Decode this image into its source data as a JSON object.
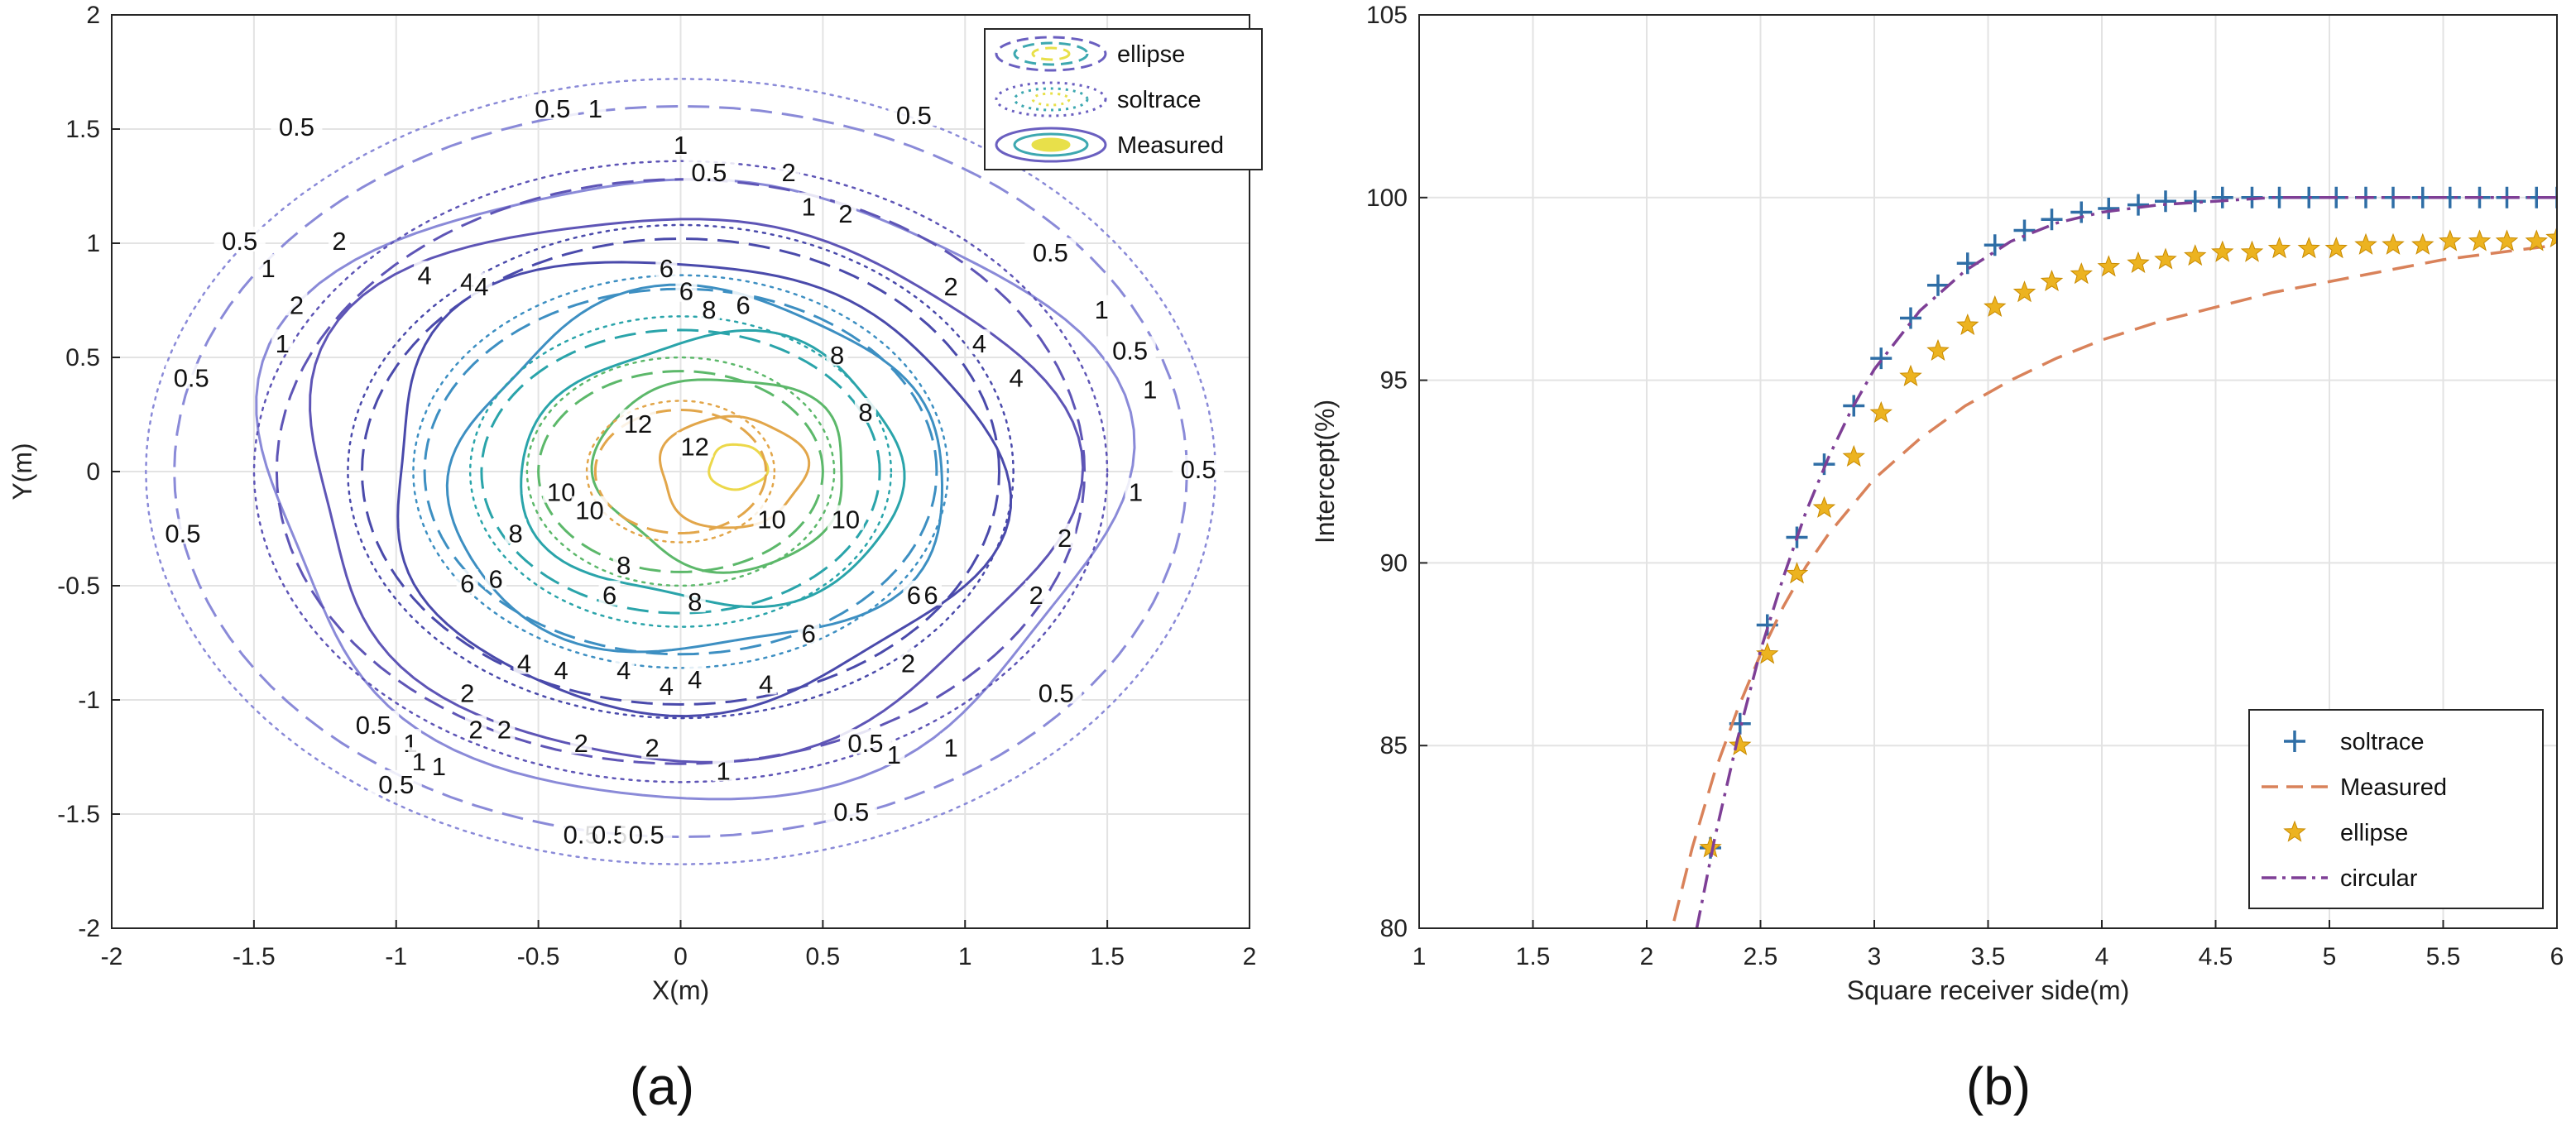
{
  "chart_data": [
    {
      "type": "contour",
      "panel_label": "(a)",
      "xlabel": "X(m)",
      "ylabel": "Y(m)",
      "xlim": [
        -2,
        2
      ],
      "ylim": [
        -2,
        2
      ],
      "xticks": [
        "-2",
        "-1.5",
        "-1",
        "-0.5",
        "0",
        "0.5",
        "1",
        "1.5",
        "2"
      ],
      "yticks": [
        "2",
        "1.5",
        "1",
        "0.5",
        "0",
        "-0.5",
        "-1",
        "-1.5",
        "-2"
      ],
      "grid": true,
      "legend_position": "top-right",
      "legend": [
        "ellipse",
        "soltrace",
        "Measured"
      ],
      "levels": [
        0.5,
        1,
        2,
        4,
        6,
        8,
        10,
        12
      ],
      "level_colors": [
        "#8a8ad8",
        "#5e55b6",
        "#4a4aab",
        "#3d8fc2",
        "#2aa4aa",
        "#5cb86a",
        "#e2a64a",
        "#ecd84a"
      ],
      "series": [
        {
          "name": "Measured",
          "style": "solid",
          "contours": [
            {
              "level": 0.5,
              "cx": 0.02,
              "cy": -0.05,
              "rx": 1.48,
              "ry": 1.38
            },
            {
              "level": 1,
              "cx": 0.0,
              "cy": -0.05,
              "rx": 1.32,
              "ry": 1.2
            },
            {
              "level": 2,
              "cx": 0.02,
              "cy": -0.05,
              "rx": 1.08,
              "ry": 0.98
            },
            {
              "level": 4,
              "cx": 0.06,
              "cy": -0.02,
              "rx": 0.88,
              "ry": 0.78
            },
            {
              "level": 6,
              "cx": 0.12,
              "cy": 0.0,
              "rx": 0.66,
              "ry": 0.6
            },
            {
              "level": 8,
              "cx": 0.15,
              "cy": 0.0,
              "rx": 0.44,
              "ry": 0.42
            },
            {
              "level": 10,
              "cx": 0.18,
              "cy": 0.0,
              "rx": 0.26,
              "ry": 0.24
            },
            {
              "level": 12,
              "cx": 0.2,
              "cy": 0.02,
              "rx": 0.1,
              "ry": 0.1
            }
          ]
        },
        {
          "name": "ellipse",
          "style": "dashed",
          "contours": [
            {
              "level": 0.5,
              "cx": 0.0,
              "cy": 0.0,
              "rx": 1.78,
              "ry": 1.6
            },
            {
              "level": 1,
              "cx": 0.0,
              "cy": 0.0,
              "rx": 1.42,
              "ry": 1.28
            },
            {
              "level": 2,
              "cx": 0.0,
              "cy": 0.0,
              "rx": 1.12,
              "ry": 1.02
            },
            {
              "level": 4,
              "cx": 0.0,
              "cy": 0.0,
              "rx": 0.9,
              "ry": 0.8
            },
            {
              "level": 6,
              "cx": 0.0,
              "cy": 0.0,
              "rx": 0.7,
              "ry": 0.62
            },
            {
              "level": 8,
              "cx": 0.0,
              "cy": 0.0,
              "rx": 0.5,
              "ry": 0.44
            },
            {
              "level": 10,
              "cx": 0.0,
              "cy": 0.0,
              "rx": 0.3,
              "ry": 0.27
            }
          ]
        },
        {
          "name": "soltrace",
          "style": "dotted",
          "contours": [
            {
              "level": 0.5,
              "cx": 0.0,
              "cy": 0.0,
              "rx": 1.88,
              "ry": 1.72
            },
            {
              "level": 1,
              "cx": 0.0,
              "cy": 0.0,
              "rx": 1.5,
              "ry": 1.36
            },
            {
              "level": 2,
              "cx": 0.0,
              "cy": 0.0,
              "rx": 1.17,
              "ry": 1.08
            },
            {
              "level": 4,
              "cx": 0.0,
              "cy": 0.0,
              "rx": 0.94,
              "ry": 0.86
            },
            {
              "level": 6,
              "cx": 0.0,
              "cy": 0.0,
              "rx": 0.74,
              "ry": 0.68
            },
            {
              "level": 8,
              "cx": 0.0,
              "cy": 0.0,
              "rx": 0.54,
              "ry": 0.5
            },
            {
              "level": 10,
              "cx": 0.0,
              "cy": 0.0,
              "rx": 0.33,
              "ry": 0.31
            }
          ]
        }
      ],
      "contour_labels": [
        {
          "text": "0.5",
          "x": -1.35,
          "y": 1.5
        },
        {
          "text": "0.5",
          "x": -0.45,
          "y": 1.58
        },
        {
          "text": "1",
          "x": -0.3,
          "y": 1.58
        },
        {
          "text": "0.5",
          "x": 0.82,
          "y": 1.55
        },
        {
          "text": "1",
          "x": 0.0,
          "y": 1.42
        },
        {
          "text": "0.5",
          "x": 0.1,
          "y": 1.3
        },
        {
          "text": "2",
          "x": 0.38,
          "y": 1.3
        },
        {
          "text": "1",
          "x": 0.45,
          "y": 1.15
        },
        {
          "text": "2",
          "x": 0.58,
          "y": 1.12
        },
        {
          "text": "2",
          "x": -1.2,
          "y": 1.0
        },
        {
          "text": "0.5",
          "x": -1.55,
          "y": 1.0
        },
        {
          "text": "1",
          "x": -1.45,
          "y": 0.88
        },
        {
          "text": "2",
          "x": -1.35,
          "y": 0.72
        },
        {
          "text": "4",
          "x": -0.9,
          "y": 0.85
        },
        {
          "text": "4",
          "x": -0.75,
          "y": 0.82
        },
        {
          "text": "4",
          "x": -0.7,
          "y": 0.8
        },
        {
          "text": "6",
          "x": -0.05,
          "y": 0.88
        },
        {
          "text": "6",
          "x": 0.02,
          "y": 0.78
        },
        {
          "text": "8",
          "x": 0.1,
          "y": 0.7
        },
        {
          "text": "6",
          "x": 0.22,
          "y": 0.72
        },
        {
          "text": "1",
          "x": -1.4,
          "y": 0.55
        },
        {
          "text": "0.5",
          "x": -1.72,
          "y": 0.4
        },
        {
          "text": "2",
          "x": 0.95,
          "y": 0.8
        },
        {
          "text": "4",
          "x": 1.05,
          "y": 0.55
        },
        {
          "text": "4",
          "x": 1.18,
          "y": 0.4
        },
        {
          "text": "0.5",
          "x": 1.3,
          "y": 0.95
        },
        {
          "text": "1",
          "x": 1.48,
          "y": 0.7
        },
        {
          "text": "0.5",
          "x": 1.58,
          "y": 0.52
        },
        {
          "text": "1",
          "x": 1.65,
          "y": 0.35
        },
        {
          "text": "8",
          "x": 0.55,
          "y": 0.5
        },
        {
          "text": "8",
          "x": 0.65,
          "y": 0.25
        },
        {
          "text": "12",
          "x": -0.15,
          "y": 0.2
        },
        {
          "text": "12",
          "x": 0.05,
          "y": 0.1
        },
        {
          "text": "0.5",
          "x": 1.82,
          "y": 0.0
        },
        {
          "text": "1",
          "x": 1.6,
          "y": -0.1
        },
        {
          "text": "10",
          "x": -0.42,
          "y": -0.1
        },
        {
          "text": "10",
          "x": -0.32,
          "y": -0.18
        },
        {
          "text": "10",
          "x": 0.32,
          "y": -0.22
        },
        {
          "text": "10",
          "x": 0.58,
          "y": -0.22
        },
        {
          "text": "0.5",
          "x": -1.75,
          "y": -0.28
        },
        {
          "text": "8",
          "x": -0.58,
          "y": -0.28
        },
        {
          "text": "2",
          "x": 1.35,
          "y": -0.3
        },
        {
          "text": "8",
          "x": -0.2,
          "y": -0.42
        },
        {
          "text": "6",
          "x": -0.65,
          "y": -0.48
        },
        {
          "text": "6",
          "x": -0.75,
          "y": -0.5
        },
        {
          "text": "6",
          "x": -0.25,
          "y": -0.55
        },
        {
          "text": "8",
          "x": 0.05,
          "y": -0.58
        },
        {
          "text": "6",
          "x": 0.82,
          "y": -0.55
        },
        {
          "text": "6",
          "x": 0.88,
          "y": -0.55
        },
        {
          "text": "6",
          "x": 0.45,
          "y": -0.72
        },
        {
          "text": "2",
          "x": 1.25,
          "y": -0.55
        },
        {
          "text": "4",
          "x": -0.55,
          "y": -0.85
        },
        {
          "text": "4",
          "x": -0.42,
          "y": -0.88
        },
        {
          "text": "4",
          "x": -0.2,
          "y": -0.88
        },
        {
          "text": "4",
          "x": -0.05,
          "y": -0.95
        },
        {
          "text": "4",
          "x": 0.05,
          "y": -0.92
        },
        {
          "text": "4",
          "x": 0.3,
          "y": -0.94
        },
        {
          "text": "2",
          "x": 0.8,
          "y": -0.85
        },
        {
          "text": "0.5",
          "x": 1.32,
          "y": -0.98
        },
        {
          "text": "2",
          "x": -0.75,
          "y": -0.98
        },
        {
          "text": "0.5",
          "x": -1.08,
          "y": -1.12
        },
        {
          "text": "1",
          "x": -0.95,
          "y": -1.2
        },
        {
          "text": "2",
          "x": -0.72,
          "y": -1.14
        },
        {
          "text": "2",
          "x": -0.62,
          "y": -1.14
        },
        {
          "text": "2",
          "x": -0.35,
          "y": -1.2
        },
        {
          "text": "2",
          "x": -0.1,
          "y": -1.22
        },
        {
          "text": "0.5",
          "x": 0.65,
          "y": -1.2
        },
        {
          "text": "1",
          "x": 0.75,
          "y": -1.25
        },
        {
          "text": "1",
          "x": 0.95,
          "y": -1.22
        },
        {
          "text": "1",
          "x": -0.92,
          "y": -1.28
        },
        {
          "text": "1",
          "x": -0.85,
          "y": -1.3
        },
        {
          "text": "1",
          "x": 0.15,
          "y": -1.32
        },
        {
          "text": "0.5",
          "x": -1.0,
          "y": -1.38
        },
        {
          "text": "0.5",
          "x": 0.6,
          "y": -1.5
        },
        {
          "text": "0.5",
          "x": -0.35,
          "y": -1.6
        },
        {
          "text": "0.5",
          "x": -0.25,
          "y": -1.6
        },
        {
          "text": "0.5",
          "x": -0.12,
          "y": -1.6
        }
      ]
    },
    {
      "type": "scatter-line",
      "panel_label": "(b)",
      "xlabel": "Square receiver side(m)",
      "ylabel": "Intercept(%)",
      "xlim": [
        1,
        6
      ],
      "ylim": [
        80,
        105
      ],
      "xticks": [
        "1",
        "1.5",
        "2",
        "2.5",
        "3",
        "3.5",
        "4",
        "4.5",
        "5",
        "5.5",
        "6"
      ],
      "yticks": [
        "105",
        "100",
        "95",
        "90",
        "85",
        "80"
      ],
      "grid": true,
      "legend_position": "bottom-right",
      "series": [
        {
          "name": "soltrace",
          "style": "plus-markers",
          "color": "#2f6ea6",
          "x": [
            2.28,
            2.41,
            2.53,
            2.66,
            2.78,
            2.91,
            3.03,
            3.16,
            3.28,
            3.41,
            3.53,
            3.66,
            3.78,
            3.91,
            4.03,
            4.16,
            4.28,
            4.41,
            4.53,
            4.66,
            4.78,
            4.91,
            5.03,
            5.16,
            5.28,
            5.41,
            5.53,
            5.66,
            5.78,
            5.91,
            6.0
          ],
          "y": [
            82.2,
            85.6,
            88.3,
            90.7,
            92.7,
            94.3,
            95.6,
            96.7,
            97.6,
            98.2,
            98.7,
            99.1,
            99.4,
            99.6,
            99.7,
            99.8,
            99.9,
            99.9,
            100,
            100,
            100,
            100,
            100,
            100,
            100,
            100,
            100,
            100,
            100,
            100,
            100
          ]
        },
        {
          "name": "Measured",
          "style": "dashed",
          "color": "#d9825a",
          "x": [
            2.12,
            2.2,
            2.3,
            2.4,
            2.5,
            2.6,
            2.7,
            2.8,
            3.0,
            3.2,
            3.4,
            3.6,
            3.8,
            4.0,
            4.25,
            4.5,
            4.75,
            5.0,
            5.25,
            5.5,
            5.75,
            6.0
          ],
          "y": [
            80.2,
            82.2,
            84.3,
            86.0,
            87.5,
            88.8,
            89.9,
            90.8,
            92.3,
            93.4,
            94.3,
            95.0,
            95.6,
            96.1,
            96.6,
            97.0,
            97.4,
            97.7,
            98.0,
            98.3,
            98.5,
            98.7
          ]
        },
        {
          "name": "ellipse",
          "style": "star-markers",
          "color": "#ecb320",
          "x": [
            2.28,
            2.41,
            2.53,
            2.66,
            2.78,
            2.91,
            3.03,
            3.16,
            3.28,
            3.41,
            3.53,
            3.66,
            3.78,
            3.91,
            4.03,
            4.16,
            4.28,
            4.41,
            4.53,
            4.66,
            4.78,
            4.91,
            5.03,
            5.16,
            5.28,
            5.41,
            5.53,
            5.66,
            5.78,
            5.91,
            6.0
          ],
          "y": [
            82.2,
            85.0,
            87.5,
            89.7,
            91.5,
            92.9,
            94.1,
            95.1,
            95.8,
            96.5,
            97.0,
            97.4,
            97.7,
            97.9,
            98.1,
            98.2,
            98.3,
            98.4,
            98.5,
            98.5,
            98.6,
            98.6,
            98.6,
            98.7,
            98.7,
            98.7,
            98.8,
            98.8,
            98.8,
            98.8,
            98.9
          ]
        },
        {
          "name": "circular",
          "style": "dash-dot",
          "color": "#7e3f96",
          "x": [
            2.22,
            2.3,
            2.4,
            2.5,
            2.6,
            2.7,
            2.8,
            2.9,
            3.0,
            3.2,
            3.4,
            3.6,
            3.8,
            4.0,
            4.25,
            4.5,
            4.75,
            5.0,
            5.5,
            6.0
          ],
          "y": [
            80.0,
            82.5,
            85.2,
            87.6,
            89.6,
            91.4,
            92.9,
            94.2,
            95.3,
            96.9,
            98.0,
            98.8,
            99.3,
            99.6,
            99.8,
            99.9,
            100,
            100,
            100,
            100
          ]
        }
      ]
    }
  ]
}
